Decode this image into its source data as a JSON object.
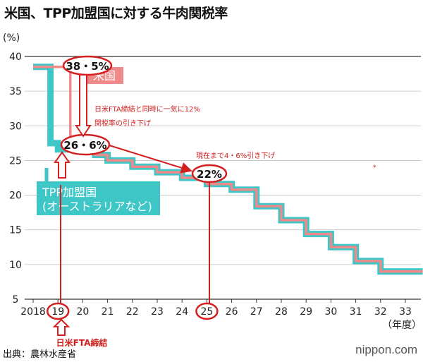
{
  "title": "米国、TPP加盟国に対する牛肉関税率",
  "source": "出典：農林水産省",
  "brand": "nippon.com",
  "chart_data": {
    "type": "line",
    "ylabel": "(%)",
    "xlabel": "（年度）",
    "ylim": [
      5,
      40
    ],
    "yticks": [
      5,
      10,
      15,
      20,
      25,
      30,
      35,
      40
    ],
    "categories": [
      "2018",
      "19",
      "20",
      "21",
      "22",
      "23",
      "24",
      "25",
      "26",
      "27",
      "28",
      "29",
      "30",
      "31",
      "32",
      "33"
    ],
    "grid": "horizontal",
    "series": [
      {
        "name": "米国",
        "color": "#f08a8a",
        "points": [
          [
            2018.0,
            38.5
          ],
          [
            2019.5,
            38.5
          ],
          [
            2019.5,
            26.6
          ],
          [
            2020.5,
            26.6
          ],
          [
            2020.5,
            25.8
          ],
          [
            2021.0,
            25.8
          ],
          [
            2021.0,
            25.0
          ],
          [
            2022.0,
            25.0
          ],
          [
            2022.0,
            24.1
          ],
          [
            2023.0,
            24.1
          ],
          [
            2023.0,
            23.3
          ],
          [
            2024.0,
            23.3
          ],
          [
            2024.0,
            22.5
          ],
          [
            2025.0,
            22.5
          ],
          [
            2025.0,
            21.6
          ],
          [
            2026.0,
            21.6
          ],
          [
            2026.0,
            20.8
          ],
          [
            2027.0,
            20.8
          ],
          [
            2027.0,
            18.4
          ],
          [
            2028.0,
            18.4
          ],
          [
            2028.0,
            16.4
          ],
          [
            2029.0,
            16.4
          ],
          [
            2029.0,
            14.4
          ],
          [
            2030.0,
            14.4
          ],
          [
            2030.0,
            12.5
          ],
          [
            2031.0,
            12.5
          ],
          [
            2031.0,
            10.5
          ],
          [
            2032.0,
            10.5
          ],
          [
            2032.0,
            9.0
          ],
          [
            2033.7,
            9.0
          ]
        ]
      },
      {
        "name": "TPP加盟国（オーストラリアなど）",
        "color": "#3fc6c6",
        "points": [
          [
            2018.0,
            38.5
          ],
          [
            2018.7,
            38.5
          ],
          [
            2018.7,
            27.5
          ],
          [
            2019.0,
            27.5
          ],
          [
            2019.0,
            26.6
          ],
          [
            2020.5,
            26.6
          ],
          [
            2020.5,
            25.8
          ],
          [
            2021.0,
            25.8
          ],
          [
            2021.0,
            25.0
          ],
          [
            2022.0,
            25.0
          ],
          [
            2022.0,
            24.1
          ],
          [
            2023.0,
            24.1
          ],
          [
            2023.0,
            23.3
          ],
          [
            2024.0,
            23.3
          ],
          [
            2024.0,
            22.5
          ],
          [
            2025.0,
            22.5
          ],
          [
            2025.0,
            21.6
          ],
          [
            2026.0,
            21.6
          ],
          [
            2026.0,
            20.8
          ],
          [
            2027.0,
            20.8
          ],
          [
            2027.0,
            18.4
          ],
          [
            2028.0,
            18.4
          ],
          [
            2028.0,
            16.4
          ],
          [
            2029.0,
            16.4
          ],
          [
            2029.0,
            14.4
          ],
          [
            2030.0,
            14.4
          ],
          [
            2030.0,
            12.5
          ],
          [
            2031.0,
            12.5
          ],
          [
            2031.0,
            10.5
          ],
          [
            2032.0,
            10.5
          ],
          [
            2032.0,
            9.0
          ],
          [
            2033.7,
            9.0
          ]
        ]
      }
    ],
    "legend": {
      "us_label": "米国",
      "tpp_label_line1": "TPP加盟国",
      "tpp_label_line2": "(オーストラリアなど)"
    },
    "annotations": {
      "us_rate": "38・5%",
      "tpp_fta_rate": "26・6%",
      "current_rate": "22%",
      "fta_text_line1": "日米FTA締結と同時に一気に12%",
      "fta_text_line2": "関税率の引き下げ",
      "current_text": "現在まで4・6%引き下げ",
      "fta_signed": "日米FTA締結"
    },
    "highlight_years": [
      "19",
      "25"
    ]
  }
}
